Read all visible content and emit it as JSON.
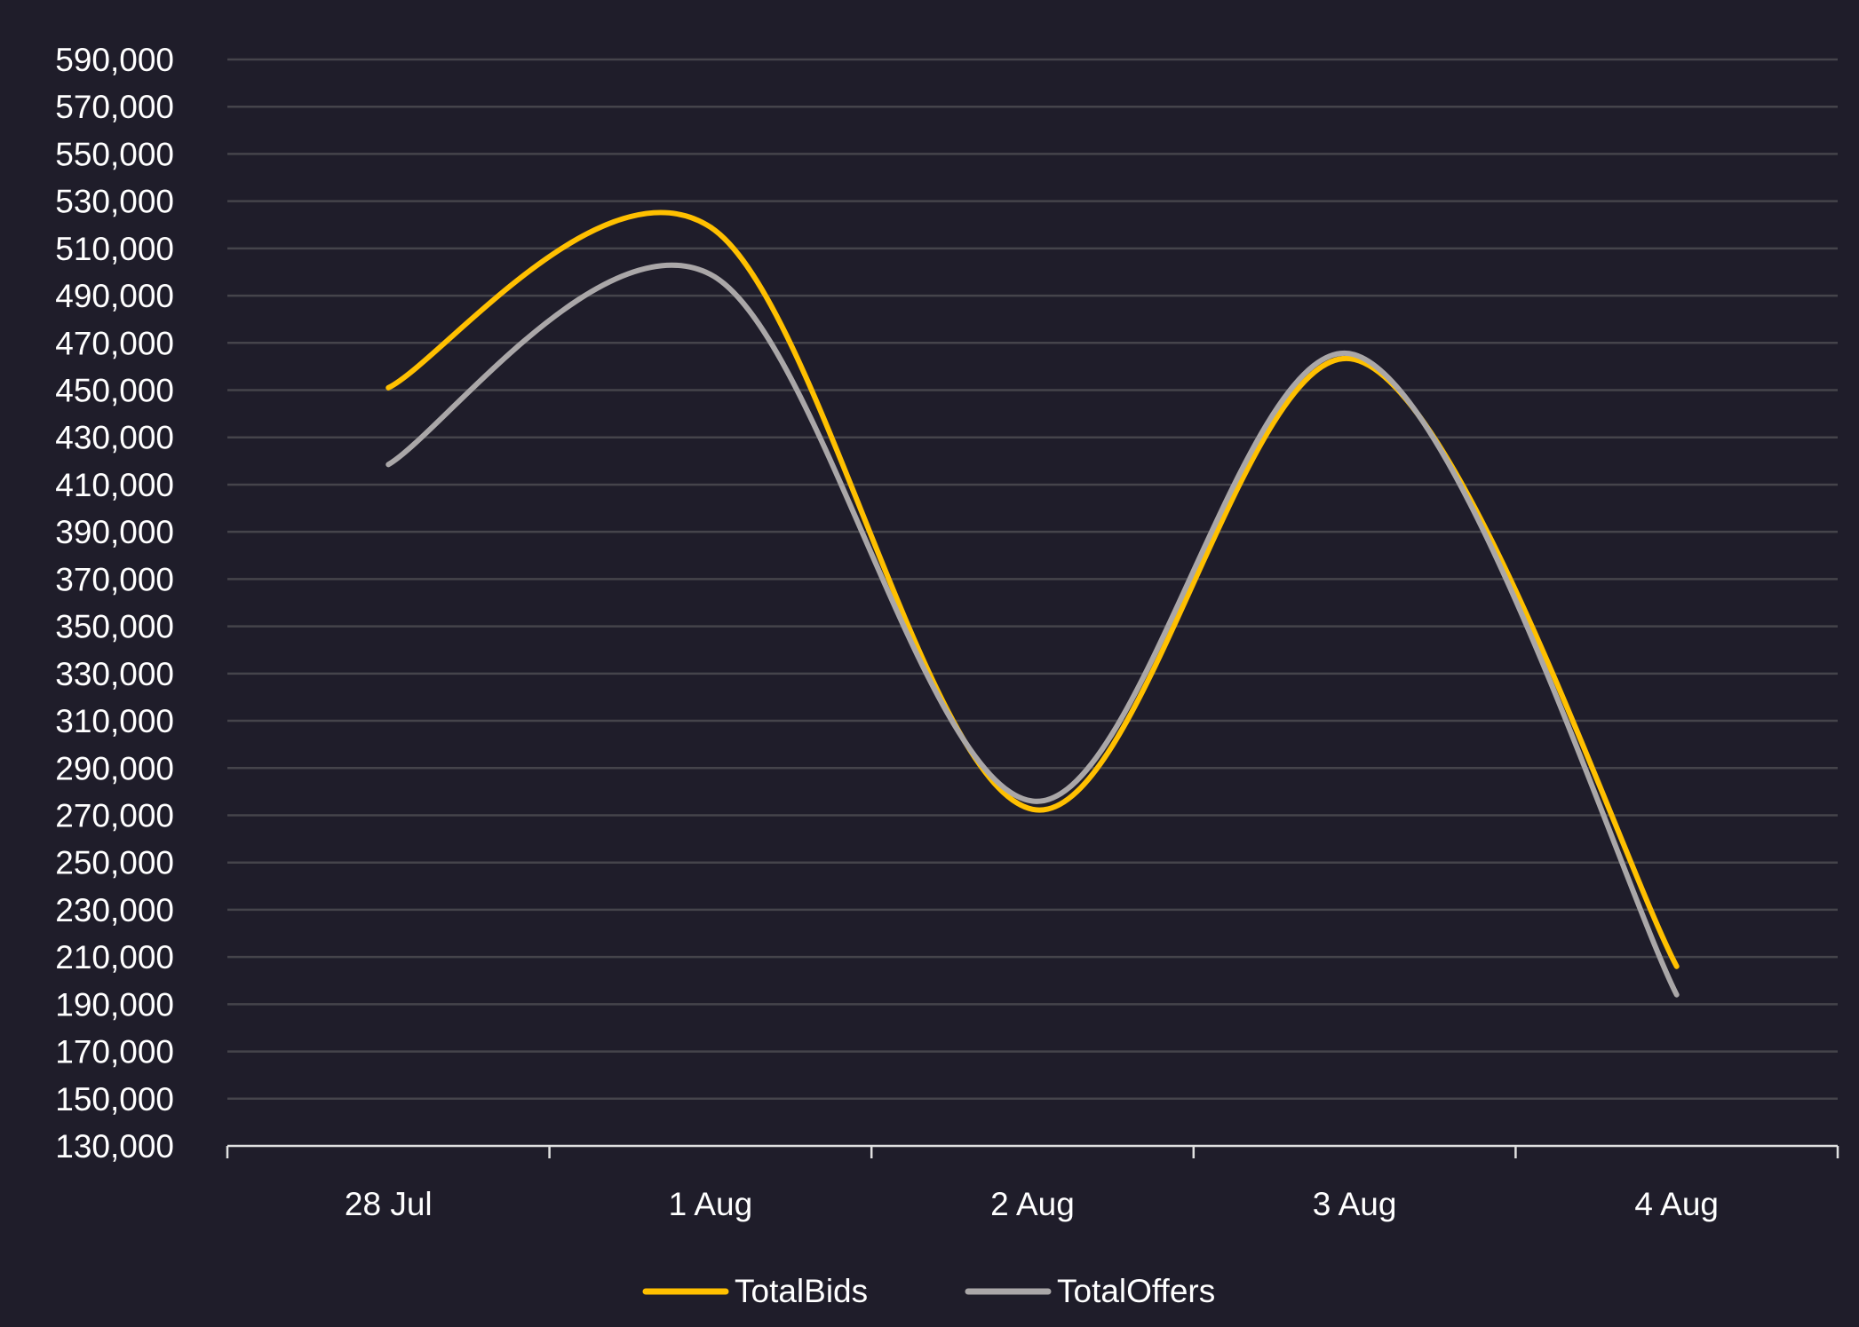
{
  "chart_data": {
    "type": "line",
    "title": "",
    "xlabel": "",
    "ylabel": "",
    "categories": [
      "28 Jul",
      "1 Aug",
      "2 Aug",
      "3 Aug",
      "4 Aug"
    ],
    "series": [
      {
        "name": "TotalBids",
        "color": "#ffc000",
        "values": [
          451000,
          519000,
          272500,
          463000,
          206000
        ]
      },
      {
        "name": "TotalOffers",
        "color": "#aaa7a8",
        "values": [
          418500,
          499000,
          276000,
          465000,
          194000
        ]
      }
    ],
    "ylim": [
      130000,
      590000
    ],
    "ytick_step": 20000,
    "grid": true,
    "smooth": true,
    "legend_position": "bottom"
  }
}
